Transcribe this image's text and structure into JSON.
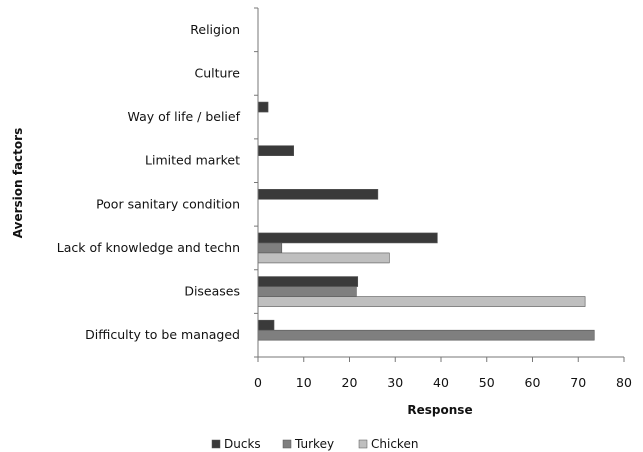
{
  "chart_data": {
    "type": "bar",
    "orientation": "horizontal",
    "categories": [
      "Religion",
      "Culture",
      "Way of life  / belief",
      "Limited market",
      "Poor sanitary condition",
      "Lack of knowledge and techn",
      "Diseases",
      "Difficulty to be managed"
    ],
    "series": [
      {
        "name": "Ducks",
        "color": "#3a3a3a",
        "values": [
          0,
          0,
          2.2,
          7.8,
          26.2,
          39.2,
          21.8,
          3.5
        ]
      },
      {
        "name": "Turkey",
        "color": "#7f7f7f",
        "values": [
          0,
          0,
          0,
          0,
          0,
          5.2,
          21.5,
          73.5
        ]
      },
      {
        "name": "Chicken",
        "color": "#bfbfbf",
        "values": [
          0,
          0,
          0,
          0,
          0,
          28.7,
          71.5,
          0
        ]
      }
    ],
    "xlabel": "Response",
    "ylabel": "Aversion factors",
    "xlim": [
      0,
      80
    ],
    "xticks": [
      0,
      10,
      20,
      30,
      40,
      50,
      60,
      70,
      80
    ],
    "grid": false,
    "legend_position": "bottom"
  }
}
